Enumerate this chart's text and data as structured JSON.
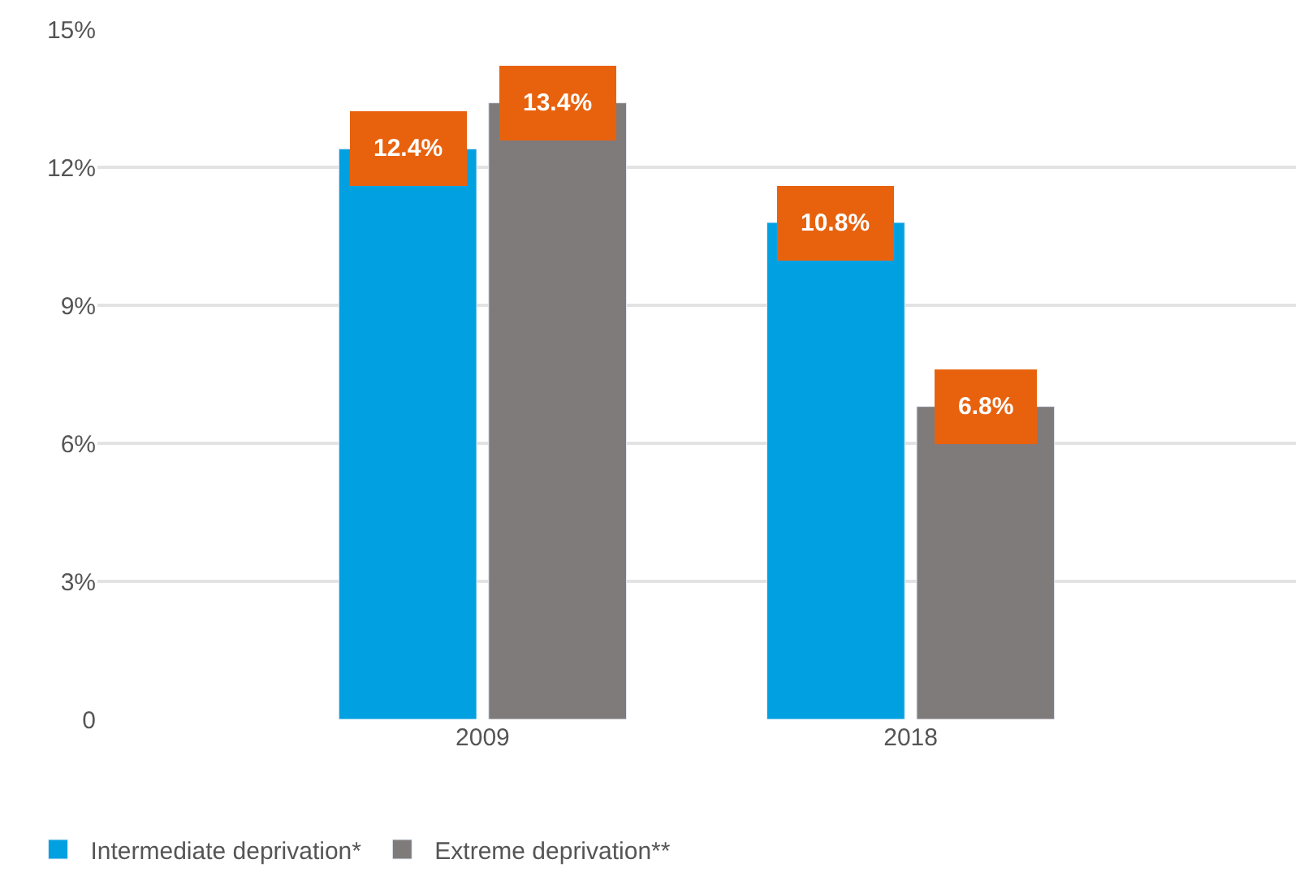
{
  "chart_data": {
    "type": "bar",
    "categories": [
      "2009",
      "2018"
    ],
    "series": [
      {
        "name": "Intermediate deprivation*",
        "color": "#00a0e1",
        "values": [
          12.4,
          10.8
        ],
        "value_labels": [
          "12.4%",
          "10.8%"
        ]
      },
      {
        "name": "Extreme deprivation**",
        "color": "#7f7b7b",
        "values": [
          13.4,
          6.8
        ],
        "value_labels": [
          "13.4%",
          "6.8%"
        ]
      }
    ],
    "ylim": [
      0,
      15
    ],
    "yticks": [
      0,
      {
        "value": 3,
        "label": "3%"
      },
      {
        "value": 6,
        "label": "6%"
      },
      {
        "value": 9,
        "label": "9%"
      },
      {
        "value": 12,
        "label": "12%"
      },
      {
        "value": 15,
        "label": "15%"
      }
    ],
    "grid": "y",
    "legend": "bottom left"
  }
}
